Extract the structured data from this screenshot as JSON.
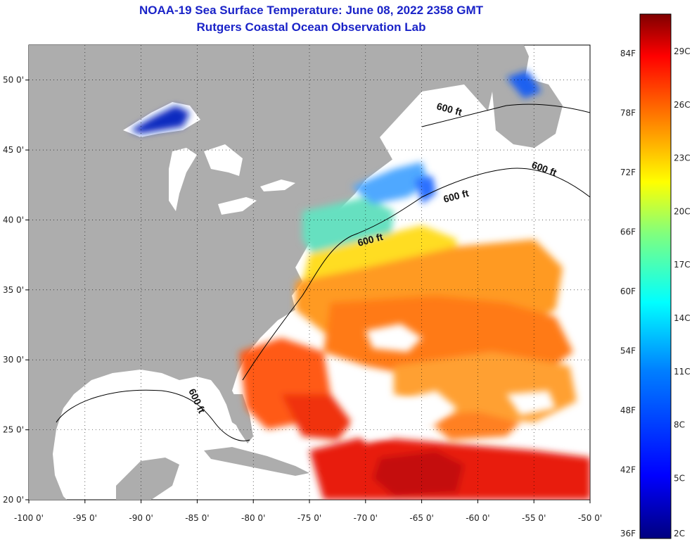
{
  "title": {
    "line1": "NOAA-19 Sea Surface Temperature:  June 08, 2022 2358 GMT",
    "line2": "Rutgers Coastal Ocean Observation Lab"
  },
  "map": {
    "lon_range": [
      -100,
      -50
    ],
    "lat_range": [
      20,
      52.5
    ],
    "grid": "dotted",
    "land_color": "#adadad",
    "cloud_color": "#ffffff",
    "lat_ticks": [
      {
        "value": 20,
        "label": "20 0'"
      },
      {
        "value": 25,
        "label": "25 0'"
      },
      {
        "value": 30,
        "label": "30 0'"
      },
      {
        "value": 35,
        "label": "35 0'"
      },
      {
        "value": 40,
        "label": "40 0'"
      },
      {
        "value": 45,
        "label": "45 0'"
      },
      {
        "value": 50,
        "label": "50 0'"
      }
    ],
    "lon_ticks": [
      {
        "value": -100,
        "label": "-100 0'"
      },
      {
        "value": -95,
        "label": "-95 0'"
      },
      {
        "value": -90,
        "label": "-90 0'"
      },
      {
        "value": -85,
        "label": "-85 0'"
      },
      {
        "value": -80,
        "label": "-80 0'"
      },
      {
        "value": -75,
        "label": "-75 0'"
      },
      {
        "value": -70,
        "label": "-70 0'"
      },
      {
        "value": -65,
        "label": "-65 0'"
      },
      {
        "value": -60,
        "label": "-60 0'"
      },
      {
        "value": -55,
        "label": "-55 0'"
      },
      {
        "value": -50,
        "label": "-50 0'"
      }
    ],
    "depth_labels": [
      "600 ft",
      "600 ft",
      "600 ft",
      "600 ft",
      "600 ft"
    ]
  },
  "colorbar": {
    "colors": [
      "#00007f",
      "#0000ff",
      "#007fff",
      "#00ffff",
      "#7fff7f",
      "#ffff00",
      "#ff7f00",
      "#ff0000",
      "#7f0000"
    ],
    "fahrenheit_labels": [
      "84F",
      "78F",
      "72F",
      "66F",
      "60F",
      "54F",
      "48F",
      "42F",
      "36F"
    ],
    "celsius_labels": [
      "29C",
      "26C",
      "23C",
      "20C",
      "17C",
      "14C",
      "11C",
      "8C",
      "5C",
      "2C"
    ]
  }
}
